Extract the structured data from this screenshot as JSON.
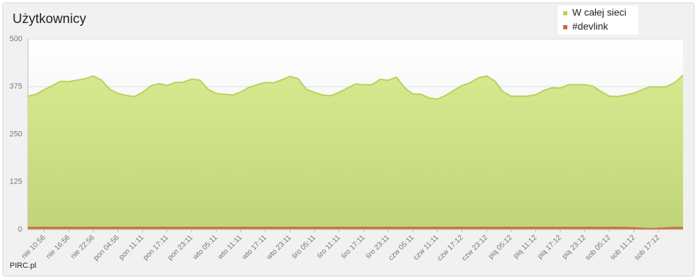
{
  "chart_data": {
    "type": "area",
    "title": "Użytkownicy",
    "footer": "PIRC.pl",
    "categories": [
      null,
      null,
      "nie 10:56",
      null,
      null,
      "nie 16:56",
      null,
      null,
      "nie 22:56",
      null,
      null,
      "pon 04:56",
      null,
      null,
      "pon 11:11",
      null,
      null,
      "pon 17:11",
      null,
      null,
      "pon 23:11",
      null,
      null,
      "wto 05:11",
      null,
      null,
      "wto 11:11",
      null,
      null,
      "wto 17:11",
      null,
      null,
      "wto 23:11",
      null,
      null,
      "śro 05:11",
      null,
      null,
      "śro 11:11",
      null,
      null,
      "śro 17:11",
      null,
      null,
      "śro 23:11",
      null,
      null,
      "czw 05:11",
      null,
      null,
      "czw 11:11",
      null,
      null,
      "czw 17:12",
      null,
      null,
      "czw 23:12",
      null,
      null,
      "pią 05:12",
      null,
      null,
      "pią 11:12",
      null,
      null,
      "pią 17:12",
      null,
      null,
      "pią 23:12",
      null,
      null,
      "sob 05:12",
      null,
      null,
      "sob 11:12",
      null,
      null,
      "sob 17:12",
      null,
      null,
      null
    ],
    "series": [
      {
        "name": "W całej sieci",
        "color": "#b5d35a",
        "values": [
          350,
          355,
          367,
          378,
          389,
          388,
          392,
          396,
          403,
          392,
          368,
          357,
          352,
          349,
          360,
          377,
          383,
          378,
          386,
          387,
          395,
          392,
          368,
          357,
          355,
          353,
          361,
          373,
          380,
          386,
          385,
          393,
          402,
          396,
          368,
          360,
          353,
          351,
          360,
          371,
          382,
          380,
          380,
          394,
          392,
          400,
          372,
          356,
          355,
          345,
          342,
          352,
          365,
          378,
          385,
          398,
          403,
          390,
          362,
          350,
          350,
          350,
          354,
          365,
          372,
          371,
          380,
          380,
          380,
          376,
          362,
          350,
          349,
          353,
          358,
          367,
          375,
          374,
          375,
          386,
          405
        ]
      },
      {
        "name": "#devlink",
        "color": "#d0683a",
        "values": [
          5,
          5,
          5,
          5,
          5,
          5,
          5,
          5,
          5,
          5,
          5,
          5,
          5,
          5,
          5,
          5,
          5,
          5,
          5,
          5,
          5,
          5,
          5,
          5,
          5,
          5,
          5,
          5,
          5,
          5,
          5,
          5,
          5,
          5,
          5,
          5,
          5,
          5,
          5,
          5,
          5,
          5,
          5,
          5,
          5,
          5,
          5,
          5,
          5,
          5,
          5,
          5,
          5,
          5,
          5,
          5,
          5,
          5,
          5,
          5,
          5,
          5,
          5,
          5,
          5,
          5,
          5,
          5,
          5,
          5,
          5,
          5,
          5,
          5,
          4,
          3,
          2,
          3,
          4,
          5,
          5
        ]
      }
    ],
    "ylim": [
      0,
      500
    ],
    "yticks": [
      0,
      125,
      250,
      375,
      500
    ],
    "grid": true,
    "legend": "top-right"
  }
}
